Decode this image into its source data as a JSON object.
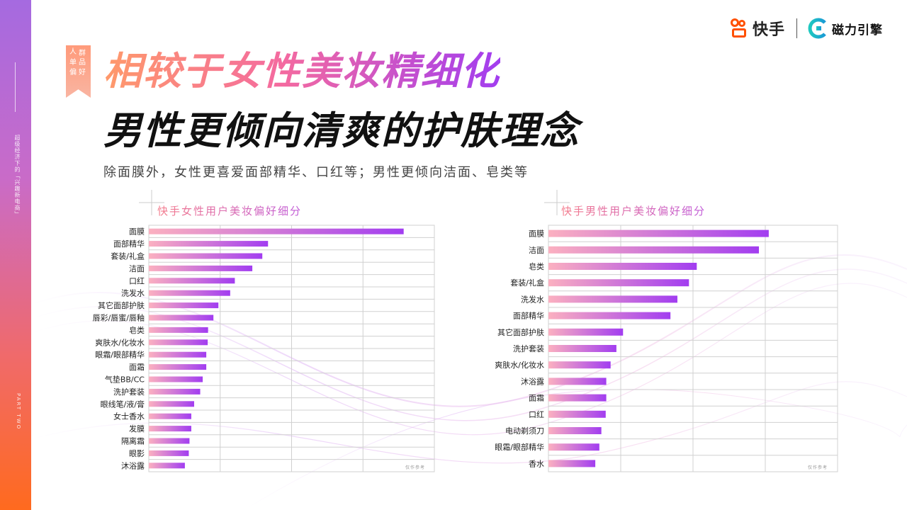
{
  "side": {
    "vertical_text_top": "超级经济下的「兴趣新电商」",
    "vertical_text_bottom": "PART TWO"
  },
  "tag": {
    "chars": [
      "人",
      "群",
      "单",
      "品",
      "偏",
      "好"
    ]
  },
  "header": {
    "title_line1": "相较于女性美妆精细化",
    "title_line2": "男性更倾向清爽的护肤理念",
    "subtitle": "除面膜外，女性更喜爱面部精华、口红等；男性更倾向洁面、皂类等"
  },
  "logos": {
    "kuaishou": "快手",
    "cili": "磁力引擎"
  },
  "colors": {
    "bar_start": "#fbb0c0",
    "bar_end": "#a23df0",
    "grid": "#d0d0d0"
  },
  "chart_data": [
    {
      "type": "bar",
      "orientation": "horizontal",
      "title": "快手女性用户美妆偏好细分",
      "watermark": "仅作参考",
      "categories": [
        "面膜",
        "面部精华",
        "套装/礼盒",
        "洁面",
        "口红",
        "洗发水",
        "其它面部护肤",
        "唇彩/唇蜜/唇釉",
        "皂类",
        "爽肤水/化妆水",
        "眼霜/眼部精华",
        "面霜",
        "气垫BB/CC",
        "洗护套装",
        "眼线笔/液/膏",
        "女士香水",
        "发膜",
        "隔离霜",
        "眼影",
        "沐浴露"
      ],
      "values": [
        0.714,
        0.334,
        0.318,
        0.29,
        0.241,
        0.228,
        0.195,
        0.181,
        0.166,
        0.165,
        0.161,
        0.161,
        0.151,
        0.144,
        0.127,
        0.119,
        0.119,
        0.114,
        0.112,
        0.101
      ],
      "xlim": [
        0,
        0.8
      ],
      "grid": true
    },
    {
      "type": "bar",
      "orientation": "horizontal",
      "title": "快手男性用户美妆偏好细分",
      "watermark": "仅作参考",
      "categories": [
        "面膜",
        "洁面",
        "皂类",
        "套装/礼盒",
        "洗发水",
        "面部精华",
        "其它面部护肤",
        "洗护套装",
        "爽肤水/化妆水",
        "沐浴露",
        "面霜",
        "口红",
        "电动剃须刀",
        "眼霜/眼部精华",
        "香水"
      ],
      "values": [
        0.762,
        0.728,
        0.513,
        0.486,
        0.446,
        0.422,
        0.258,
        0.235,
        0.215,
        0.2,
        0.2,
        0.198,
        0.183,
        0.176,
        0.162
      ],
      "xlim": [
        0,
        1.0
      ],
      "grid": true
    }
  ]
}
